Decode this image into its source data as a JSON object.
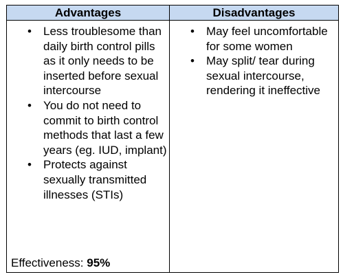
{
  "table": {
    "header_left": "Advantages",
    "header_right": "Disadvantages",
    "advantages": [
      "Less troublesome than daily birth control pills as it only needs to be inserted before sexual intercourse",
      "You do not need to commit to birth control methods that last a few years (eg. IUD, implant)",
      "Protects against sexually transmitted illnesses (STIs)"
    ],
    "disadvantages": [
      "May feel uncomfortable for some women",
      "May split/ tear during sexual intercourse, rendering it ineffective"
    ],
    "effectiveness_label": "Effectiveness: ",
    "effectiveness_value": "95%"
  }
}
